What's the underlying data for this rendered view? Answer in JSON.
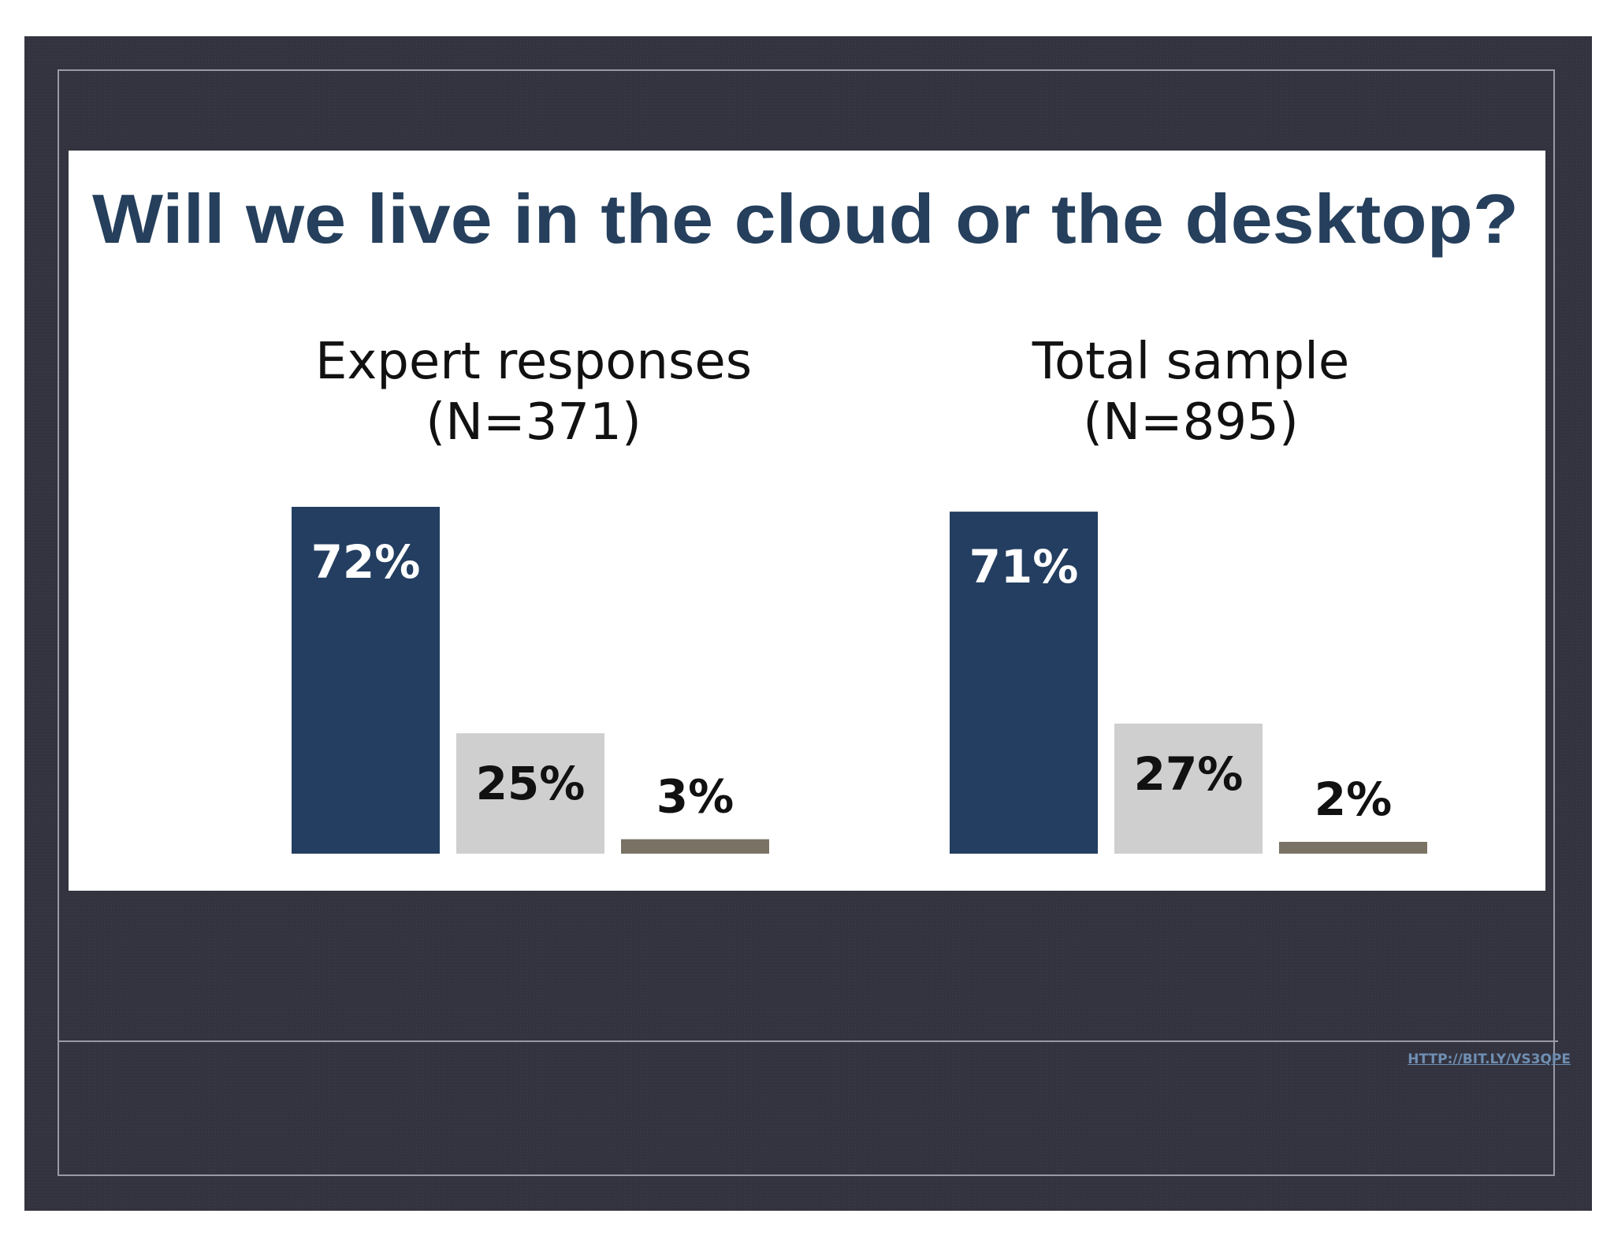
{
  "slide": {
    "link_text": "HTTP://BIT.LY/VS3QPE"
  },
  "colors": {
    "background": "#33333f",
    "title": "#253f5c",
    "cloud": "#233e60",
    "desktop": "#cfcfcf",
    "other": "#7a7365"
  },
  "chart_data": {
    "type": "bar",
    "title": "Will we live in the cloud or the desktop?",
    "units": "%",
    "groups": [
      {
        "title": "Expert responses",
        "subtitle": "(N=371)",
        "values": [
          72,
          25,
          3
        ]
      },
      {
        "title": "Total sample",
        "subtitle": "(N=895)",
        "values": [
          71,
          27,
          2
        ]
      }
    ],
    "value_labels": [
      [
        "72%",
        "25%",
        "3%"
      ],
      [
        "71%",
        "27%",
        "2%"
      ]
    ],
    "ylim": [
      0,
      72
    ],
    "grid": false,
    "legend": "none"
  }
}
